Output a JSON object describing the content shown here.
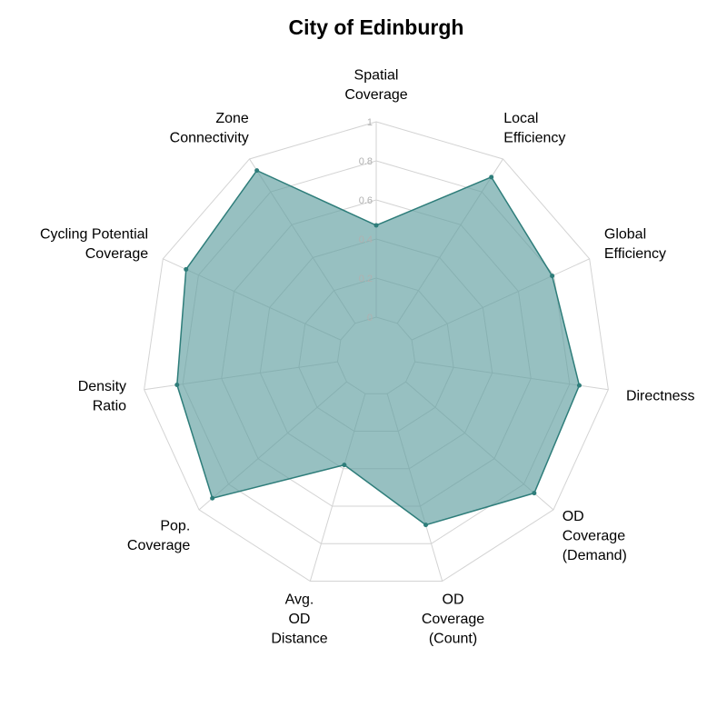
{
  "chart_data": {
    "type": "radar",
    "title": "City of Edinburgh",
    "axes": [
      [
        "Spatial",
        "Coverage"
      ],
      [
        "Local",
        "Efficiency"
      ],
      [
        "Global",
        "Efficiency"
      ],
      [
        "Directness"
      ],
      [
        "OD",
        "Coverage",
        "(Demand)"
      ],
      [
        "OD",
        "Coverage",
        "(Count)"
      ],
      [
        "Avg.",
        "OD",
        "Distance"
      ],
      [
        "Pop.",
        "Coverage"
      ],
      [
        "Density",
        "Ratio"
      ],
      [
        "Cycling Potential",
        "Coverage"
      ],
      [
        "Zone",
        "Connectivity"
      ]
    ],
    "values": [
      0.47,
      0.89,
      0.79,
      0.85,
      0.87,
      0.7,
      0.38,
      0.91,
      0.83,
      0.87,
      0.93
    ],
    "rlim": [
      0,
      1
    ],
    "r_ticks": [
      "0",
      "0.2",
      "0.4",
      "0.6",
      "0.8",
      "1"
    ],
    "grid": true,
    "colors": {
      "fill": "#5f9ea0",
      "fill_opacity": 0.65,
      "line": "#2e7d7a",
      "marker": "#2e7d7a",
      "grid": "#d3d3d3",
      "tick": "#b0b0b0"
    }
  }
}
